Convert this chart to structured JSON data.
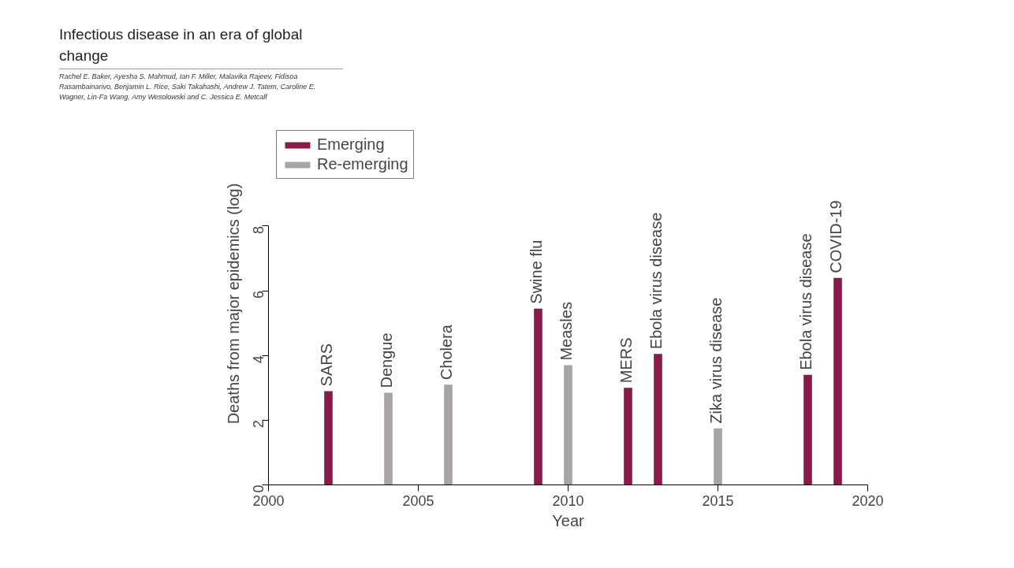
{
  "chart_data": {
    "type": "bar",
    "title": "Infectious disease in an era of global change",
    "subtitle": "Rachel E. Baker, Ayesha S. Mahmud, Ian F. Miller, Malavika Rajeev, Fidisoa Rasambainarivo, Benjamin L. Rice, Saki Takahashi, Andrew J. Tatem, Caroline E. Wagner, Lin-Fa Wang, Amy Wesolowski and C. Jessica E. Metcalf",
    "xlabel": "Year",
    "ylabel": "Deaths from major epidemics (log)",
    "xlim": [
      2000,
      2020
    ],
    "xticks": [
      2000,
      2005,
      2010,
      2015,
      2020
    ],
    "ylim": [
      0,
      8
    ],
    "yticks": [
      0,
      2,
      4,
      6,
      8
    ],
    "grid": false,
    "legend": "top left",
    "series": [
      {
        "name": "Emerging",
        "color": "#8b1a4a",
        "x": [
          2002,
          2009,
          2012,
          2013,
          2018,
          2019
        ],
        "values": [
          2.9,
          5.45,
          3.0,
          4.05,
          3.4,
          6.4
        ]
      },
      {
        "name": "Re-emerging",
        "color": "#a9a4a4",
        "x": [
          2004,
          2006,
          2010,
          2015
        ],
        "values": [
          2.85,
          3.1,
          3.7,
          1.75
        ]
      }
    ],
    "annotations": [
      {
        "text": "SARS",
        "x": 2002,
        "y": 2.9
      },
      {
        "text": "Dengue",
        "x": 2004,
        "y": 2.85
      },
      {
        "text": "Cholera",
        "x": 2006,
        "y": 3.1
      },
      {
        "text": "Swine flu",
        "x": 2009,
        "y": 5.45
      },
      {
        "text": "Measles",
        "x": 2010,
        "y": 3.7
      },
      {
        "text": "MERS",
        "x": 2012,
        "y": 3.0
      },
      {
        "text": "Ebola virus disease",
        "x": 2013,
        "y": 4.05
      },
      {
        "text": "Zika virus disease",
        "x": 2015,
        "y": 1.75
      },
      {
        "text": "Ebola virus disease",
        "x": 2018,
        "y": 3.4
      },
      {
        "text": "COVID-19",
        "x": 2019,
        "y": 6.4
      }
    ]
  }
}
